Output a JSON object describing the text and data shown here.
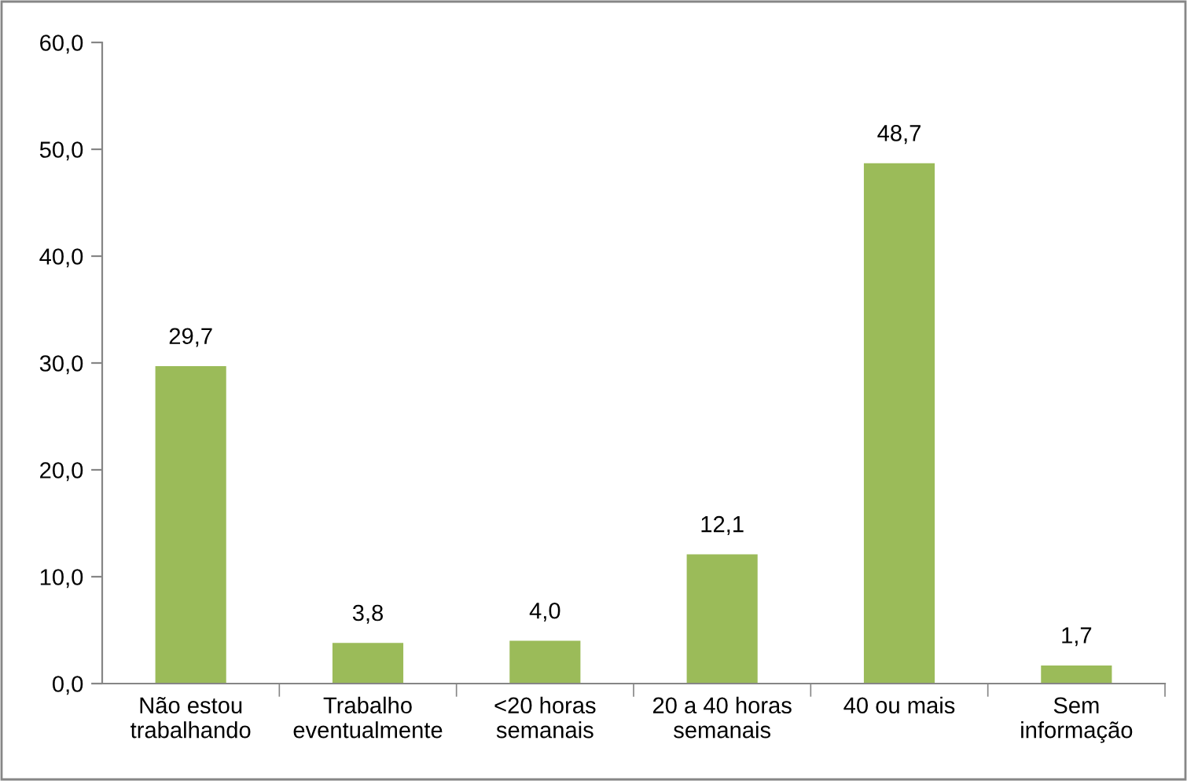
{
  "chart_data": {
    "type": "bar",
    "categories": [
      "Não estou\ntrabalhando",
      "Trabalho\neventualmente",
      "<20 horas\nsemanais",
      "20 a 40 horas\nsemanais",
      "40 ou mais",
      "Sem\ninformação"
    ],
    "values": [
      29.7,
      3.8,
      4.0,
      12.1,
      48.7,
      1.7
    ],
    "value_labels": [
      "29,7",
      "3,8",
      "4,0",
      "12,1",
      "48,7",
      "1,7"
    ],
    "color": "#9bbb59",
    "ylim": [
      0,
      60
    ],
    "yticks": [
      {
        "value": 0,
        "label": "0,0"
      },
      {
        "value": 10,
        "label": "10,0"
      },
      {
        "value": 20,
        "label": "20,0"
      },
      {
        "value": 30,
        "label": "30,0"
      },
      {
        "value": 40,
        "label": "40,0"
      },
      {
        "value": 50,
        "label": "50,0"
      },
      {
        "value": 60,
        "label": "60,0"
      }
    ],
    "grid": false
  }
}
